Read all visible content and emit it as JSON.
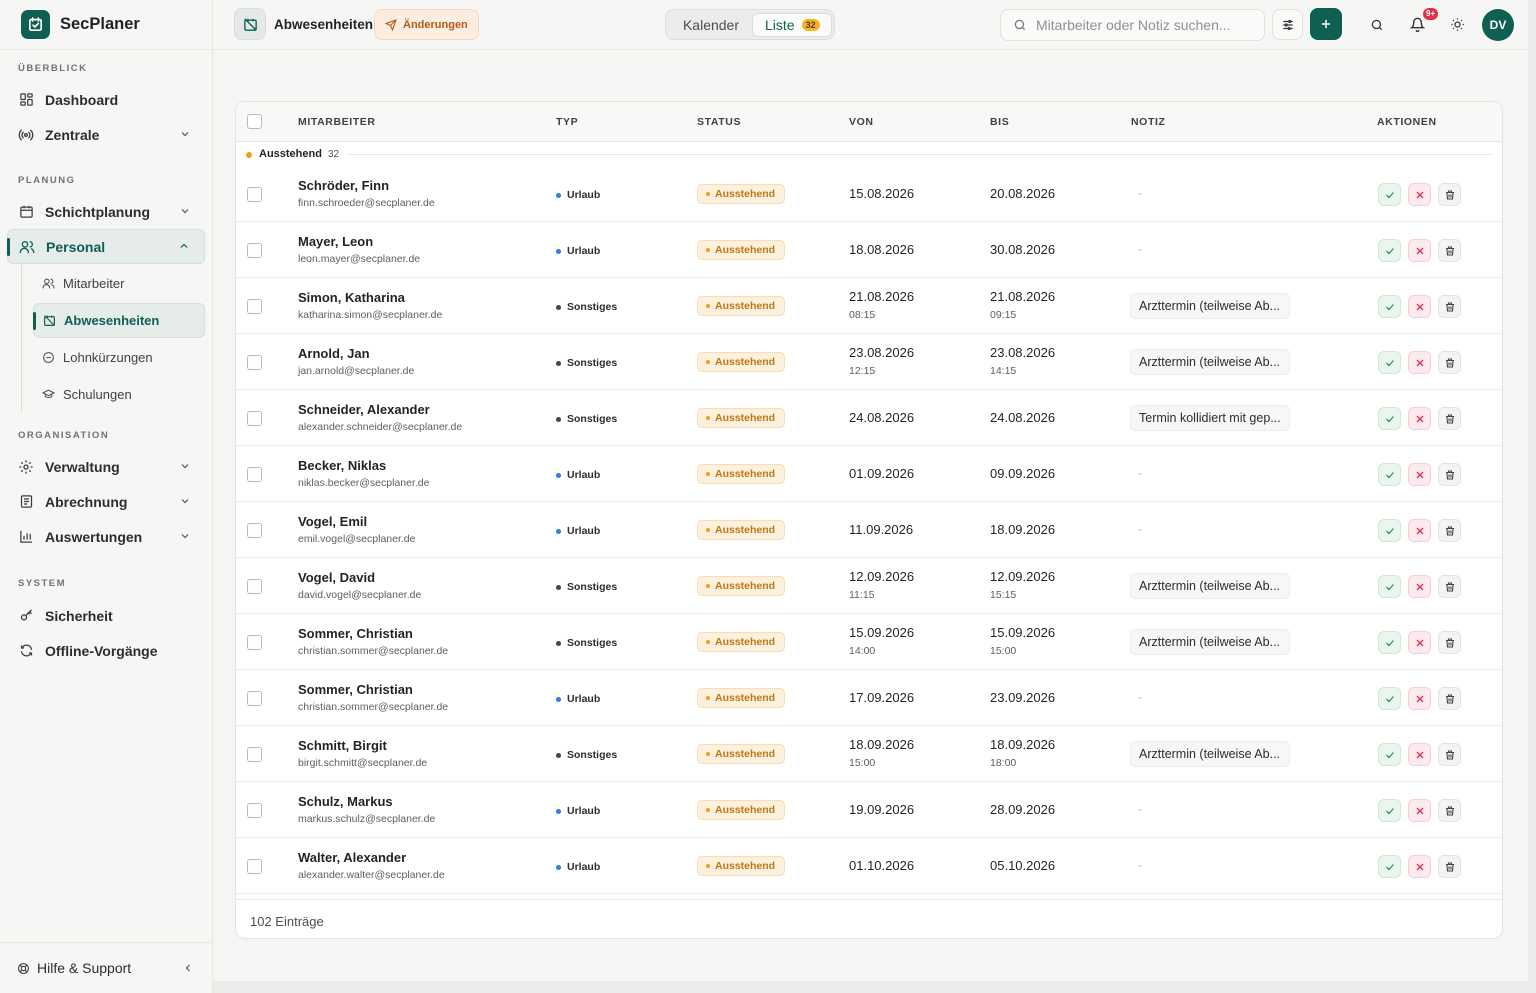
{
  "app": {
    "name": "SecPlaner"
  },
  "colors": {
    "brand": "#0f5f52",
    "pending": "#f29d1b",
    "urlaub": "#2a7de1",
    "sonstiges": "#444444",
    "approve": "#2e9a57",
    "reject": "#e0314b"
  },
  "sidebar": {
    "sections": [
      {
        "label": "ÜBERBLICK"
      },
      {
        "label": "PLANUNG"
      },
      {
        "label": "ORGANISATION"
      },
      {
        "label": "SYSTEM"
      }
    ],
    "items": {
      "dashboard": "Dashboard",
      "zentrale": "Zentrale",
      "schichtplanung": "Schichtplanung",
      "personal": "Personal",
      "mitarbeiter": "Mitarbeiter",
      "abwesenheiten": "Abwesenheiten",
      "lohnkuerzungen": "Lohnkürzungen",
      "schulungen": "Schulungen",
      "verwaltung": "Verwaltung",
      "abrechnung": "Abrechnung",
      "auswertungen": "Auswertungen",
      "sicherheit": "Sicherheit",
      "offline": "Offline-Vorgänge"
    },
    "footer": "Hilfe & Support"
  },
  "topbar": {
    "title": "Abwesenheiten",
    "changes": "Änderungen",
    "view_kalender": "Kalender",
    "view_liste": "Liste",
    "liste_count": "32",
    "search_placeholder": "Mitarbeiter oder Notiz suchen...",
    "bell_badge": "9+",
    "avatar": "DV"
  },
  "table": {
    "headers": {
      "mitarbeiter": "MITARBEITER",
      "typ": "TYP",
      "status": "STATUS",
      "von": "VON",
      "bis": "BIS",
      "notiz": "NOTIZ",
      "aktionen": "AKTIONEN"
    },
    "group": {
      "label": "Ausstehend",
      "count": "32"
    },
    "status_label": "Ausstehend",
    "empty_note": "-",
    "rows": [
      {
        "name": "Schröder, Finn",
        "email": "finn.schroeder@secplaner.de",
        "typ": "Urlaub",
        "von": "15.08.2026",
        "von_time": "",
        "bis": "20.08.2026",
        "bis_time": "",
        "note": ""
      },
      {
        "name": "Mayer, Leon",
        "email": "leon.mayer@secplaner.de",
        "typ": "Urlaub",
        "von": "18.08.2026",
        "von_time": "",
        "bis": "30.08.2026",
        "bis_time": "",
        "note": ""
      },
      {
        "name": "Simon, Katharina",
        "email": "katharina.simon@secplaner.de",
        "typ": "Sonstiges",
        "von": "21.08.2026",
        "von_time": "08:15",
        "bis": "21.08.2026",
        "bis_time": "09:15",
        "note": "Arzttermin (teilweise Ab..."
      },
      {
        "name": "Arnold, Jan",
        "email": "jan.arnold@secplaner.de",
        "typ": "Sonstiges",
        "von": "23.08.2026",
        "von_time": "12:15",
        "bis": "23.08.2026",
        "bis_time": "14:15",
        "note": "Arzttermin (teilweise Ab..."
      },
      {
        "name": "Schneider, Alexander",
        "email": "alexander.schneider@secplaner.de",
        "typ": "Sonstiges",
        "von": "24.08.2026",
        "von_time": "",
        "bis": "24.08.2026",
        "bis_time": "",
        "note": "Termin kollidiert mit gep..."
      },
      {
        "name": "Becker, Niklas",
        "email": "niklas.becker@secplaner.de",
        "typ": "Urlaub",
        "von": "01.09.2026",
        "von_time": "",
        "bis": "09.09.2026",
        "bis_time": "",
        "note": ""
      },
      {
        "name": "Vogel, Emil",
        "email": "emil.vogel@secplaner.de",
        "typ": "Urlaub",
        "von": "11.09.2026",
        "von_time": "",
        "bis": "18.09.2026",
        "bis_time": "",
        "note": ""
      },
      {
        "name": "Vogel, David",
        "email": "david.vogel@secplaner.de",
        "typ": "Sonstiges",
        "von": "12.09.2026",
        "von_time": "11:15",
        "bis": "12.09.2026",
        "bis_time": "15:15",
        "note": "Arzttermin (teilweise Ab..."
      },
      {
        "name": "Sommer, Christian",
        "email": "christian.sommer@secplaner.de",
        "typ": "Sonstiges",
        "von": "15.09.2026",
        "von_time": "14:00",
        "bis": "15.09.2026",
        "bis_time": "15:00",
        "note": "Arzttermin (teilweise Ab..."
      },
      {
        "name": "Sommer, Christian",
        "email": "christian.sommer@secplaner.de",
        "typ": "Urlaub",
        "von": "17.09.2026",
        "von_time": "",
        "bis": "23.09.2026",
        "bis_time": "",
        "note": ""
      },
      {
        "name": "Schmitt, Birgit",
        "email": "birgit.schmitt@secplaner.de",
        "typ": "Sonstiges",
        "von": "18.09.2026",
        "von_time": "15:00",
        "bis": "18.09.2026",
        "bis_time": "18:00",
        "note": "Arzttermin (teilweise Ab..."
      },
      {
        "name": "Schulz, Markus",
        "email": "markus.schulz@secplaner.de",
        "typ": "Urlaub",
        "von": "19.09.2026",
        "von_time": "",
        "bis": "28.09.2026",
        "bis_time": "",
        "note": ""
      },
      {
        "name": "Walter, Alexander",
        "email": "alexander.walter@secplaner.de",
        "typ": "Urlaub",
        "von": "01.10.2026",
        "von_time": "",
        "bis": "05.10.2026",
        "bis_time": "",
        "note": ""
      }
    ],
    "footer": "102 Einträge"
  }
}
